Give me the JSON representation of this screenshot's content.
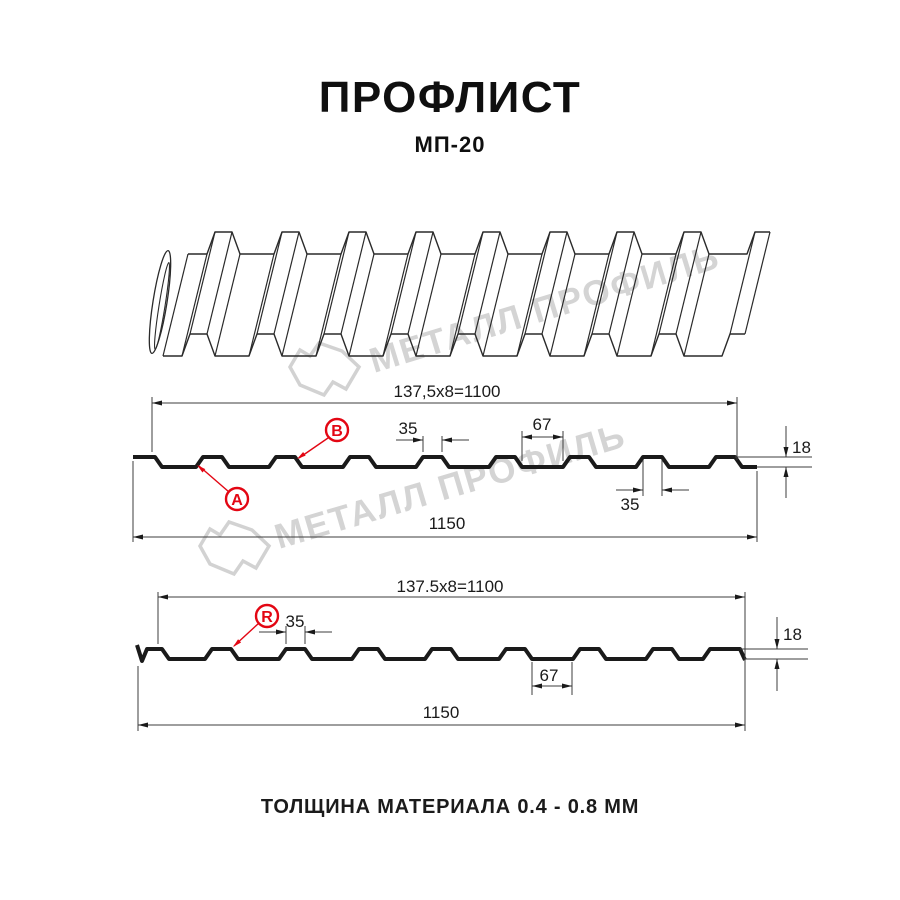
{
  "page": {
    "title": "ПРОФЛИСТ",
    "subtitle": "МП-20",
    "material_note": "ТОЛЩИНА МАТЕРИАЛА 0.4 - 0.8 ММ"
  },
  "watermark": {
    "brand": "МЕТАЛЛ ПРОФИЛЬ",
    "color": "#d4d4d4"
  },
  "colors": {
    "accent_red": "#e30613",
    "profile_line": "#1a1a1a",
    "thin_line": "#3c3c3c"
  },
  "profile_views": {
    "side_a": {
      "dim_working_width": "137,5x8=1100",
      "dim_total_width": "1150",
      "dim_rib_top": "35",
      "dim_valley": "67",
      "dim_rib_top_lower": "35",
      "dim_height": "18",
      "label_a": "A",
      "label_b": "B"
    },
    "side_r": {
      "dim_working_width": "137.5x8=1100",
      "dim_total_width": "1150",
      "dim_rib_top": "35",
      "dim_valley": "67",
      "dim_height": "18",
      "label_r": "R"
    }
  }
}
